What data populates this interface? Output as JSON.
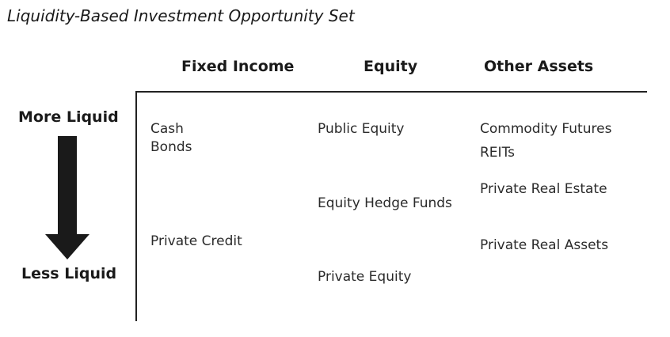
{
  "title": "Liquidity-Based Investment Opportunity Set",
  "columns": {
    "fixed_income": "Fixed Income",
    "equity": "Equity",
    "other_assets": "Other Assets"
  },
  "liquidity_axis": {
    "top_label": "More Liquid",
    "bottom_label": "Less Liquid",
    "arrow_icon": "arrow-down-icon",
    "arrow_color": "#1a1a1a"
  },
  "cells": {
    "fixed_income": {
      "cash": "Cash",
      "bonds": "Bonds",
      "private_credit": "Private Credit"
    },
    "equity": {
      "public_equity": "Public Equity",
      "equity_hedge_funds": "Equity Hedge Funds",
      "private_equity": "Private Equity"
    },
    "other_assets": {
      "commodity_futures": "Commodity Futures",
      "reits": "REITs",
      "private_real_estate": "Private Real Estate",
      "private_real_assets": "Private Real Assets"
    }
  }
}
